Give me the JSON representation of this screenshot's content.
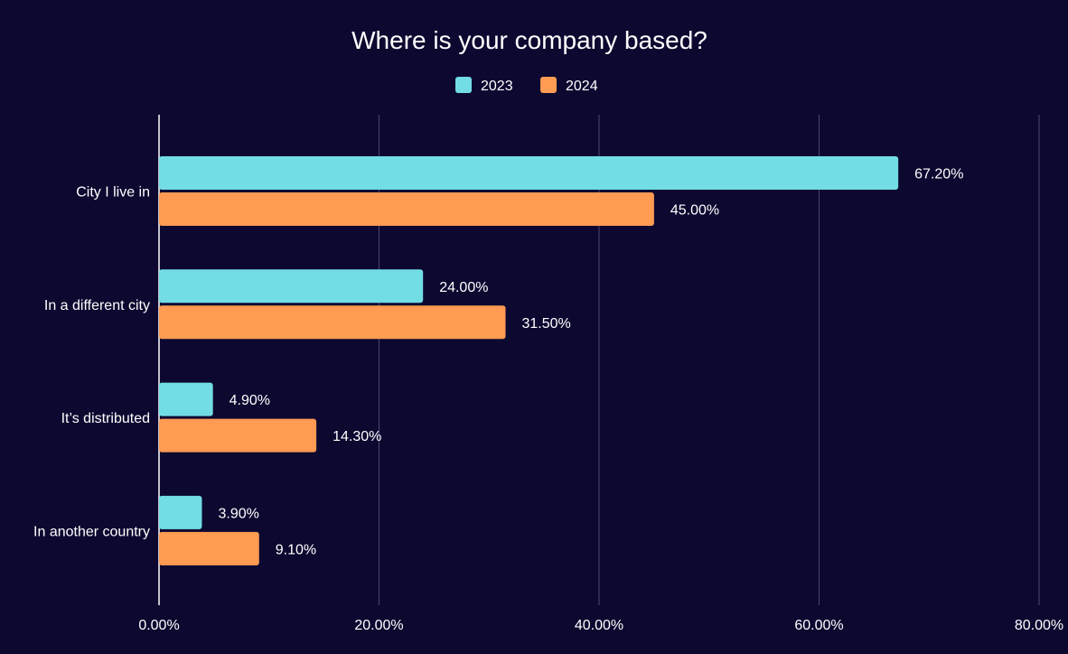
{
  "chart_data": {
    "type": "bar",
    "orientation": "horizontal",
    "title": "Where is your company based?",
    "categories": [
      "City I live in",
      "In a different city",
      "It’s distributed",
      "In another country"
    ],
    "series": [
      {
        "name": "2023",
        "color": "#72dde4",
        "values": [
          67.2,
          24.0,
          4.9,
          3.9
        ],
        "labels": [
          "67.20%",
          "24.00%",
          "4.90%",
          "3.90%"
        ]
      },
      {
        "name": "2024",
        "color": "#ff9b52",
        "values": [
          45.0,
          31.5,
          14.3,
          9.1
        ],
        "labels": [
          "45.00%",
          "31.50%",
          "14.30%",
          "9.10%"
        ]
      }
    ],
    "xlim": [
      0,
      80
    ],
    "xticks": [
      0,
      20,
      40,
      60,
      80
    ],
    "xtick_labels": [
      "0.00%",
      "20.00%",
      "40.00%",
      "60.00%",
      "80.00%"
    ],
    "grid": true,
    "legend_position": "top-center"
  }
}
